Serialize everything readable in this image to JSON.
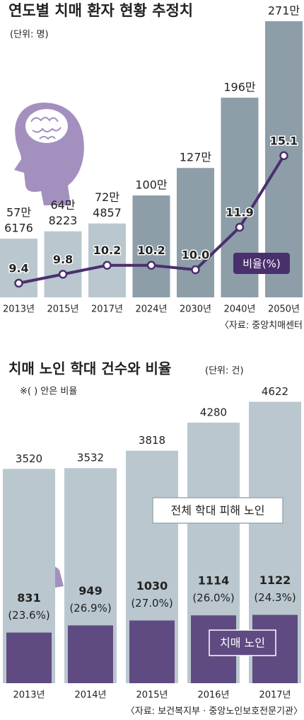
{
  "chart_data": [
    {
      "type": "bar-line",
      "title": "연도별 치매 환자 현황 추정치",
      "subtitle": "(단위: 명)",
      "categories": [
        "2013년",
        "2015년",
        "2017년",
        "2024년",
        "2030년",
        "2040년",
        "2050년"
      ],
      "values": [
        576176,
        648223,
        724857,
        1000000,
        1270000,
        1960000,
        2710000
      ],
      "value_labels": [
        [
          "57만",
          "6176"
        ],
        [
          "64만",
          "8223"
        ],
        [
          "72만",
          "4857"
        ],
        [
          "100만"
        ],
        [
          "127만"
        ],
        [
          "196만"
        ],
        [
          "271만"
        ]
      ],
      "colors": [
        "#bac7ce",
        "#bac7ce",
        "#bac7ce",
        "#8d9ea9",
        "#8d9ea9",
        "#8d9ea9",
        "#8d9ea9"
      ],
      "line": {
        "name": "비율(%)",
        "color": "#4a2f6d",
        "values": [
          9.4,
          9.8,
          10.2,
          10.2,
          10.0,
          11.9,
          15.1
        ],
        "value_labels": [
          "9.4",
          "9.8",
          "10.2",
          "10.2",
          "10.0",
          "11.9",
          "15.1"
        ]
      },
      "source": "〈자료: 중앙치매센터"
    },
    {
      "type": "overlap-bar",
      "title": "치매 노인 학대 건수와 비율",
      "subtitle": "(단위: 건)",
      "note": "※( ) 안은 비율",
      "categories": [
        "2013년",
        "2014년",
        "2015년",
        "2016년",
        "2017년"
      ],
      "series": [
        {
          "name": "전체 학대 피해 노인",
          "color": "#bac7ce",
          "values": [
            3520,
            3532,
            3818,
            4280,
            4622
          ]
        },
        {
          "name": "치매 노인",
          "color": "#5f4b82",
          "values": [
            831,
            949,
            1030,
            1114,
            1122
          ],
          "rates": [
            23.6,
            26.9,
            27.0,
            26.0,
            24.3
          ],
          "rate_labels": [
            "(23.6%)",
            "(26.9%)",
            "(27.0%)",
            "(26.0%)",
            "(24.3%)"
          ]
        }
      ],
      "source": "〈자료: 보건복지부 · 중앙노인보호전문기관〉"
    }
  ]
}
